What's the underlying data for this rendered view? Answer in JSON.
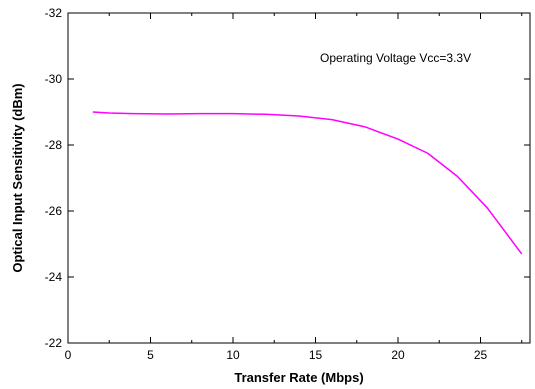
{
  "chart_data": {
    "type": "line",
    "title": "",
    "xlabel": "Transfer Rate (Mbps)",
    "ylabel": "Optical Input Sensitivity (dBm)",
    "annotation": "Operating Voltage Vcc=3.3V",
    "xlim": [
      0,
      28
    ],
    "ylim": [
      -22,
      -32
    ],
    "y_axis_inverted": true,
    "x_major_ticks": [
      0,
      5,
      10,
      15,
      20,
      25
    ],
    "y_major_ticks": [
      -32,
      -30,
      -28,
      -26,
      -24,
      -22
    ],
    "x_tick_labels": [
      "0",
      "5",
      "10",
      "15",
      "20",
      "25"
    ],
    "y_tick_labels": [
      "-32",
      "-30",
      "-28",
      "-26",
      "-24",
      "-22"
    ],
    "grid": false,
    "legend": "none",
    "series": [
      {
        "color": "#ff00ff",
        "x": [
          1.5,
          2.5,
          4.0,
          6.0,
          8.0,
          10.0,
          12.0,
          14.0,
          16.0,
          18.0,
          20.0,
          21.8,
          23.6,
          25.4,
          27.5
        ],
        "y": [
          -29.0,
          -28.97,
          -28.95,
          -28.94,
          -28.95,
          -28.95,
          -28.93,
          -28.88,
          -28.77,
          -28.55,
          -28.18,
          -27.75,
          -27.05,
          -26.1,
          -24.7
        ]
      }
    ]
  }
}
